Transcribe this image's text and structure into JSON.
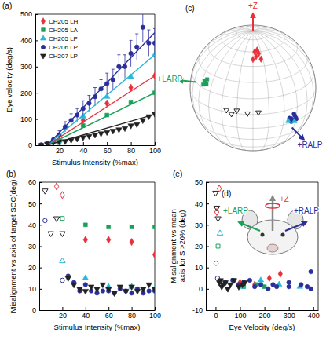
{
  "chart_data": [
    {
      "type": "scatter",
      "panel_label": "(a)",
      "x_label": "Stimulus Intensity (%max)",
      "y_label": "Eye velocity (deg/s)",
      "xlim": [
        0,
        100
      ],
      "xticks": [
        20,
        40,
        60,
        80,
        100
      ],
      "ylim": [
        0,
        500
      ],
      "yticks": [
        0,
        100,
        200,
        300,
        400,
        500
      ],
      "legend": "top-left",
      "series": [
        {
          "name": "CH205 LH",
          "color": "#e8303a",
          "marker": "diamond",
          "x": [
            20,
            40,
            60,
            80,
            100
          ],
          "values": [
            15,
            95,
            160,
            220,
            265
          ]
        },
        {
          "name": "CH205 LA",
          "color": "#1aa05a",
          "marker": "square",
          "x": [
            20,
            40,
            60,
            80,
            100
          ],
          "values": [
            10,
            75,
            115,
            165,
            200
          ]
        },
        {
          "name": "CH205 LP",
          "color": "#2ab8d8",
          "marker": "triangle",
          "x": [
            20,
            40,
            60,
            80,
            100
          ],
          "values": [
            18,
            110,
            185,
            260,
            345
          ]
        },
        {
          "name": "CH206 LP",
          "color": "#2b2f9a",
          "marker": "circle",
          "x": [
            5,
            10,
            15,
            20,
            25,
            30,
            35,
            40,
            45,
            50,
            55,
            60,
            65,
            70,
            75,
            80,
            85,
            90,
            95,
            100
          ],
          "values": [
            2,
            8,
            20,
            40,
            70,
            95,
            115,
            140,
            160,
            185,
            215,
            235,
            250,
            300,
            300,
            350,
            375,
            450,
            390,
            390
          ],
          "errors": [
            2,
            4,
            8,
            15,
            20,
            25,
            25,
            30,
            30,
            35,
            35,
            40,
            40,
            45,
            45,
            50,
            50,
            55,
            50,
            55
          ]
        },
        {
          "name": "CH207 LP",
          "color": "#222222",
          "marker": "triangle-down",
          "x": [
            5,
            10,
            15,
            20,
            25,
            30,
            35,
            40,
            45,
            50,
            55,
            60,
            65,
            70,
            75,
            80,
            85,
            90,
            95,
            100
          ],
          "values": [
            0,
            5,
            10,
            15,
            15,
            20,
            25,
            30,
            35,
            40,
            45,
            50,
            55,
            60,
            65,
            75,
            80,
            95,
            110,
            120
          ]
        },
        {
          "type": "line",
          "color": "#e8303a",
          "x": [
            10,
            100
          ],
          "values": [
            0,
            265
          ]
        },
        {
          "type": "line",
          "color": "#1aa05a",
          "x": [
            10,
            100
          ],
          "values": [
            0,
            200
          ]
        },
        {
          "type": "line",
          "color": "#2ab8d8",
          "x": [
            10,
            100
          ],
          "values": [
            0,
            345
          ]
        },
        {
          "type": "line",
          "color": "#2b2f9a",
          "x": [
            10,
            100
          ],
          "values": [
            0,
            430
          ]
        },
        {
          "type": "line",
          "color": "#222222",
          "x": [
            10,
            100
          ],
          "values": [
            0,
            118
          ]
        }
      ]
    },
    {
      "type": "scatter",
      "panel_label": "(b)",
      "x_label": "Stimulus Intensity (%max)",
      "y_label": "Misalignment vs axis of target SCC(deg)",
      "xlim": [
        0,
        100
      ],
      "xticks": [
        20,
        40,
        60,
        80,
        100
      ],
      "ylim": [
        0,
        60
      ],
      "yticks": [
        0,
        10,
        20,
        30,
        40,
        50,
        60
      ],
      "series": [
        {
          "color": "#e8303a",
          "marker": "diamond",
          "x": [
            40,
            60,
            80,
            100
          ],
          "values": [
            33,
            33,
            32,
            26
          ]
        },
        {
          "color": "#e8303a",
          "marker": "diamond-open",
          "x": [
            15,
            20
          ],
          "values": [
            58,
            54
          ]
        },
        {
          "color": "#1aa05a",
          "marker": "square",
          "x": [
            40,
            60,
            80,
            100
          ],
          "values": [
            40,
            39,
            39,
            39
          ]
        },
        {
          "color": "#1aa05a",
          "marker": "square-open",
          "x": [
            20
          ],
          "values": [
            43
          ]
        },
        {
          "color": "#2ab8d8",
          "marker": "triangle",
          "x": [
            40,
            60,
            80,
            100
          ],
          "values": [
            15,
            11,
            11,
            10
          ]
        },
        {
          "color": "#2ab8d8",
          "marker": "triangle-open",
          "x": [
            20
          ],
          "values": [
            23
          ]
        },
        {
          "color": "#2b2f9a",
          "marker": "circle",
          "x": [
            25,
            30,
            35,
            40,
            45,
            50,
            55,
            60,
            65,
            70,
            75,
            80,
            85,
            90,
            95,
            100
          ],
          "values": [
            16,
            13,
            9,
            12,
            9,
            8,
            9,
            9,
            8,
            10,
            9,
            8,
            10,
            8,
            9,
            9
          ]
        },
        {
          "color": "#2b2f9a",
          "marker": "circle-open",
          "x": [
            5,
            20
          ],
          "values": [
            42,
            14
          ]
        },
        {
          "color": "#222222",
          "marker": "triangle-down",
          "x": [
            25,
            30,
            35,
            40,
            45,
            50,
            55,
            60,
            65,
            70,
            75,
            80,
            85,
            90,
            95,
            100
          ],
          "values": [
            15,
            12,
            10,
            9,
            11,
            10,
            12,
            10,
            8,
            11,
            9,
            11,
            9,
            10,
            12,
            10
          ]
        },
        {
          "color": "#222222",
          "marker": "triangle-down-open",
          "x": [
            5,
            10,
            15,
            20
          ],
          "values": [
            56,
            36,
            43,
            36
          ]
        }
      ]
    },
    {
      "type": "scatter",
      "panel_label": "(e)",
      "x_label": "Eye Velocity (deg/s)",
      "y_label": "Misalignment vs mean axis for SI>20% (deg)",
      "xlim": [
        -40,
        420
      ],
      "xticks": [
        0,
        100,
        200,
        300,
        400
      ],
      "ylim": [
        -10,
        50
      ],
      "yticks": [
        -10,
        0,
        10,
        20,
        30,
        40,
        50
      ],
      "series": [
        {
          "color": "#e8303a",
          "marker": "diamond",
          "x": [
            100,
            160,
            220,
            265
          ],
          "values": [
            3,
            2,
            5,
            7
          ]
        },
        {
          "color": "#e8303a",
          "marker": "diamond-open",
          "x": [
            5,
            15
          ],
          "values": [
            36,
            47
          ]
        },
        {
          "color": "#1aa05a",
          "marker": "square",
          "x": [
            75,
            115,
            165,
            200
          ],
          "values": [
            4,
            1,
            2,
            1
          ]
        },
        {
          "color": "#1aa05a",
          "marker": "square-open",
          "x": [
            10
          ],
          "values": [
            20
          ]
        },
        {
          "color": "#2ab8d8",
          "marker": "triangle",
          "x": [
            110,
            185,
            260,
            345
          ],
          "values": [
            1,
            4,
            2,
            1
          ]
        },
        {
          "color": "#2ab8d8",
          "marker": "triangle-open",
          "x": [
            18
          ],
          "values": [
            26
          ]
        },
        {
          "color": "#2b2f9a",
          "marker": "circle",
          "x": [
            40,
            70,
            95,
            115,
            140,
            160,
            185,
            215,
            235,
            250,
            300,
            300,
            350,
            375,
            390,
            390
          ],
          "values": [
            3,
            4,
            2,
            3,
            4,
            1,
            2,
            0,
            2,
            1,
            3,
            1,
            2,
            1,
            8,
            0
          ]
        },
        {
          "color": "#2b2f9a",
          "marker": "circle-open",
          "x": [
            2,
            8
          ],
          "values": [
            12,
            5
          ]
        },
        {
          "color": "#222222",
          "marker": "triangle-down",
          "x": [
            15,
            20,
            25,
            30,
            40,
            50,
            60,
            75,
            95,
            110,
            120
          ],
          "values": [
            3,
            4,
            1,
            2,
            3,
            0,
            2,
            4,
            1,
            2,
            3
          ]
        },
        {
          "color": "#222222",
          "marker": "triangle-down-open",
          "x": [
            0,
            5,
            10
          ],
          "values": [
            45,
            38,
            33
          ]
        }
      ]
    }
  ],
  "panel_c": {
    "panel_label": "(c)",
    "axes": [
      {
        "label": "+Z",
        "color": "#e8303a",
        "lon": 0,
        "lat": 90
      },
      {
        "label": "+LARP",
        "color": "#1aa05a",
        "lon": -70,
        "lat": 15
      },
      {
        "label": "+RALP",
        "color": "#2b2f9a",
        "lon": 42,
        "lat": -22
      }
    ],
    "clusters": [
      {
        "color": "#e8303a",
        "marker": "diamond",
        "points": [
          [
            5,
            55
          ],
          [
            10,
            58
          ],
          [
            0,
            52
          ],
          [
            12,
            52
          ],
          [
            8,
            62
          ],
          [
            3,
            60
          ]
        ]
      },
      {
        "color": "#1aa05a",
        "marker": "square",
        "points": [
          [
            -55,
            22
          ],
          [
            -52,
            20
          ],
          [
            -56,
            18
          ],
          [
            -53,
            24
          ]
        ]
      },
      {
        "color": "#2b2f9a",
        "marker": "circle",
        "points": [
          [
            38,
            -10
          ],
          [
            42,
            -8
          ],
          [
            40,
            -12
          ],
          [
            44,
            -11
          ],
          [
            36,
            -9
          ],
          [
            41,
            -6
          ],
          [
            39,
            -14
          ],
          [
            45,
            -13
          ]
        ]
      },
      {
        "color": "#2ab8d8",
        "marker": "triangle",
        "points": [
          [
            35,
            -12
          ],
          [
            43,
            -15
          ]
        ]
      },
      {
        "color": "#222222",
        "marker": "triangle-down-open",
        "points": [
          [
            -25,
            2
          ],
          [
            -15,
            3
          ],
          [
            -5,
            1
          ],
          [
            5,
            2
          ],
          [
            -20,
            -1
          ]
        ]
      }
    ]
  },
  "panel_d": {
    "panel_label": "(d)",
    "axes": [
      {
        "label": "+Z",
        "color": "#e8303a"
      },
      {
        "label": "+LARP",
        "color": "#1aa05a"
      },
      {
        "label": "+RALP",
        "color": "#2b2f9a"
      }
    ]
  }
}
